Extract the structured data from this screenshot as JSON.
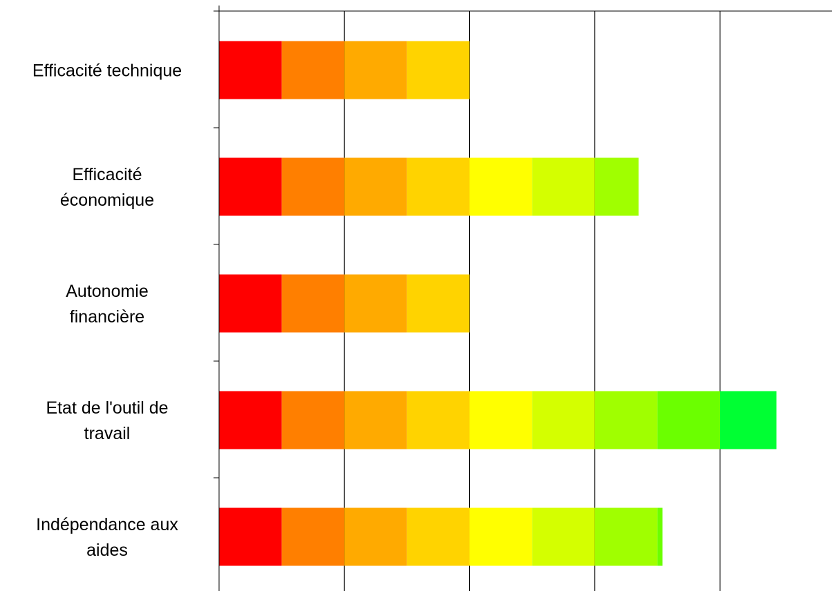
{
  "chart_data": {
    "type": "bar",
    "orientation": "horizontal",
    "stacked": true,
    "title": "",
    "xlabel": "",
    "ylabel": "",
    "xlim": [
      0,
      9
    ],
    "x_gridlines": [
      1,
      2,
      3,
      4,
      5,
      6,
      7,
      8,
      9
    ],
    "grid": true,
    "legend": "none",
    "categories": [
      "Efficacité technique",
      "Efficacité économique",
      "Autonomie financière",
      "Etat de l'outil de travail",
      "Indépendance aux aides"
    ],
    "segment_colors": [
      "#ff0000",
      "#ff7f00",
      "#ffaa00",
      "#ffd300",
      "#ffff00",
      "#d4ff00",
      "#a0ff00",
      "#6bff00",
      "#00ff33"
    ],
    "series": [
      {
        "values": [
          0.5,
          0.5,
          0.5,
          0.5,
          0.5
        ]
      },
      {
        "values": [
          0.5,
          0.5,
          0.5,
          0.5,
          0.5
        ]
      },
      {
        "values": [
          0.5,
          0.5,
          0.5,
          0.5,
          0.5
        ]
      },
      {
        "values": [
          0.5,
          0.5,
          0.5,
          0.5,
          0.5
        ]
      },
      {
        "values": [
          0,
          0.5,
          0,
          0.5,
          0.5
        ]
      },
      {
        "values": [
          0,
          0.5,
          0,
          0.5,
          0.5
        ]
      },
      {
        "values": [
          0,
          0.35,
          0,
          0.5,
          0.5
        ]
      },
      {
        "values": [
          0,
          0,
          0,
          0.5,
          0.04
        ]
      },
      {
        "values": [
          0,
          0,
          0,
          0.45,
          0
        ]
      }
    ]
  }
}
